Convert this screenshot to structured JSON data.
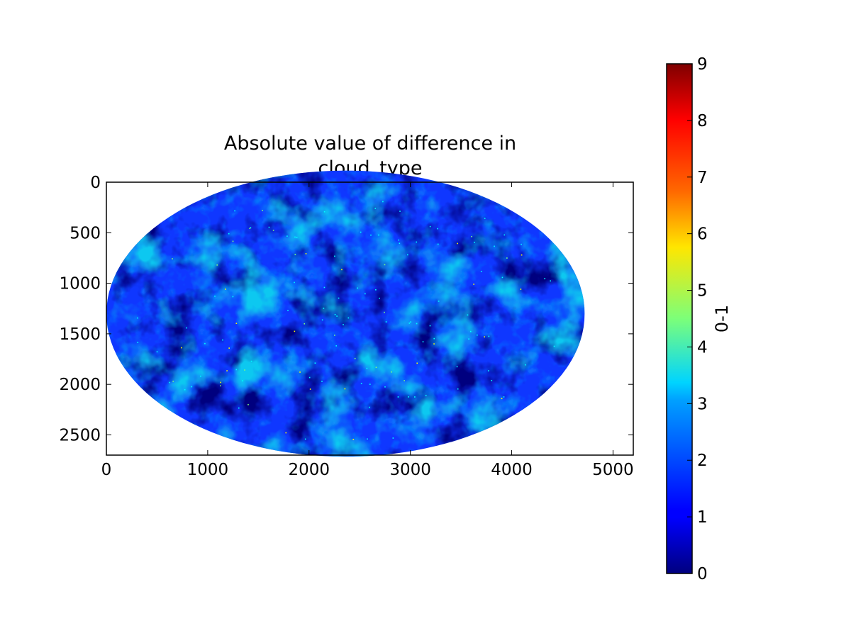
{
  "chart_data": {
    "type": "heatmap",
    "title_lines": [
      "Absolute value of difference in",
      "cloud_type"
    ],
    "xlabel": "",
    "ylabel": "",
    "xlim": [
      0,
      5200
    ],
    "ylim": [
      2700,
      0
    ],
    "x_ticks": [
      "0",
      "1000",
      "2000",
      "3000",
      "4000",
      "5000"
    ],
    "y_ticks": [
      "0",
      "500",
      "1000",
      "1500",
      "2000",
      "2500"
    ],
    "image": {
      "shape": "ellipse",
      "center_x": 2360,
      "center_y": 1300,
      "radius_x": 2360,
      "radius_y": 1415,
      "values_observed": [
        0,
        1,
        2,
        3,
        5,
        6
      ],
      "dominant_values": [
        0,
        1,
        2,
        3
      ]
    },
    "colorbar": {
      "label": "0-1",
      "min": 0,
      "max": 9,
      "ticks": [
        "0",
        "1",
        "2",
        "3",
        "4",
        "5",
        "6",
        "7",
        "8",
        "9"
      ],
      "colormap": "jet",
      "colors": [
        "#00007f",
        "#0000ff",
        "#007fff",
        "#00ffff",
        "#7fff7f",
        "#ffff00",
        "#ff7f00",
        "#ff0000",
        "#7f0000"
      ]
    },
    "grid": false
  }
}
